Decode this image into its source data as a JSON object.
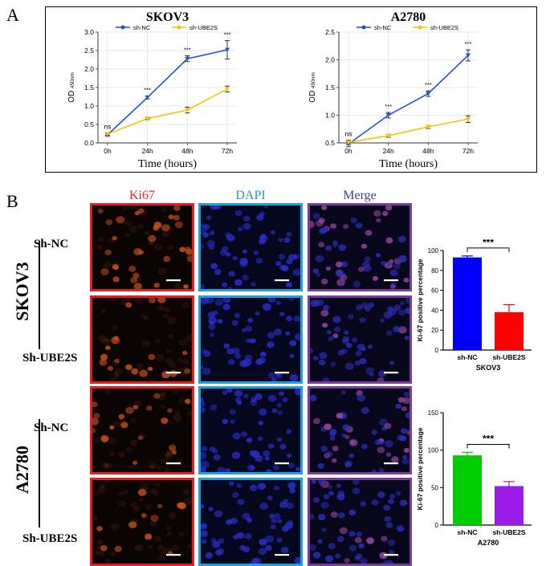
{
  "panels": {
    "a": "A",
    "b": "B"
  },
  "chart_data": [
    {
      "type": "line",
      "title": "SKOV3",
      "xlabel": "Time (hours)",
      "ylabel": "OD 450nm",
      "ylabel_main": "OD",
      "ylabel_sub": "450nm",
      "categories": [
        "0h",
        "24h",
        "48h",
        "72h"
      ],
      "ylim": [
        0,
        3.0
      ],
      "yticks": [
        "0.0",
        "0.5",
        "1.0",
        "1.5",
        "2.0",
        "2.5",
        "3.0"
      ],
      "grid": true,
      "legend": "top",
      "series": [
        {
          "name": "sh-NC",
          "color": "#1f56c8",
          "values": [
            0.22,
            1.23,
            2.28,
            2.52
          ],
          "errors": [
            0.04,
            0.04,
            0.08,
            0.25
          ]
        },
        {
          "name": "sh-UBE2S",
          "color": "#f2c40f",
          "values": [
            0.24,
            0.66,
            0.89,
            1.46
          ],
          "errors": [
            0.03,
            0.03,
            0.08,
            0.08
          ]
        }
      ],
      "annotations": [
        "ns",
        "***",
        "***",
        "***"
      ]
    },
    {
      "type": "line",
      "title": "A2780",
      "xlabel": "Time (hours)",
      "ylabel": "OD 450nm",
      "ylabel_main": "OD",
      "ylabel_sub": "450nm",
      "categories": [
        "0h",
        "24h",
        "48h",
        "72h"
      ],
      "ylim": [
        0.5,
        2.5
      ],
      "yticks": [
        "0.5",
        "1.0",
        "1.5",
        "2.0",
        "2.5"
      ],
      "grid": true,
      "legend": "top",
      "series": [
        {
          "name": "sh-NC",
          "color": "#1f56c8",
          "values": [
            0.48,
            1.0,
            1.39,
            2.08
          ],
          "errors": [
            0.05,
            0.05,
            0.05,
            0.1
          ]
        },
        {
          "name": "sh-UBE2S",
          "color": "#f2c40f",
          "values": [
            0.51,
            0.63,
            0.79,
            0.93
          ],
          "errors": [
            0.04,
            0.03,
            0.03,
            0.06
          ]
        }
      ],
      "annotations": [
        "ns",
        "***",
        "***",
        "***"
      ]
    },
    {
      "type": "bar",
      "title": "SKOV3",
      "ylabel": "Ki-67 positive percentage",
      "categories": [
        "sh-NC",
        "sh-UBE2S"
      ],
      "values": [
        93,
        38
      ],
      "errors": [
        1.5,
        7.5
      ],
      "colors": [
        "#0000ff",
        "#ff0000"
      ],
      "ylim": [
        0,
        100
      ],
      "yticks": [
        "0",
        "20",
        "40",
        "60",
        "80",
        "100"
      ],
      "significance": "***"
    },
    {
      "type": "bar",
      "title": "A2780",
      "ylabel": "Ki-67 positive percentage",
      "categories": [
        "sh-NC",
        "sh-UBE2S"
      ],
      "values": [
        93,
        52
      ],
      "errors": [
        4,
        6
      ],
      "colors": [
        "#00cc00",
        "#9a1ae6"
      ],
      "ylim": [
        0,
        150
      ],
      "yticks": [
        "0",
        "50",
        "100",
        "150"
      ],
      "significance": "***"
    }
  ],
  "micro": {
    "col_headers": [
      "Ki67",
      "DAPI",
      "Merge"
    ],
    "col_colors": {
      "ki67": "#e0272a",
      "dapi": "#2a8fd6",
      "merge": "#3a3f8f"
    },
    "border_colors": {
      "ki67": "#e02020",
      "dapi": "#1fa0d8",
      "merge": "#7a3c9c"
    },
    "cell_lines": [
      "SKOV3",
      "A2780"
    ],
    "row_labels": [
      "Sh-NC",
      "Sh-UBE2S",
      "Sh-NC",
      "Sh-UBE2S"
    ]
  }
}
